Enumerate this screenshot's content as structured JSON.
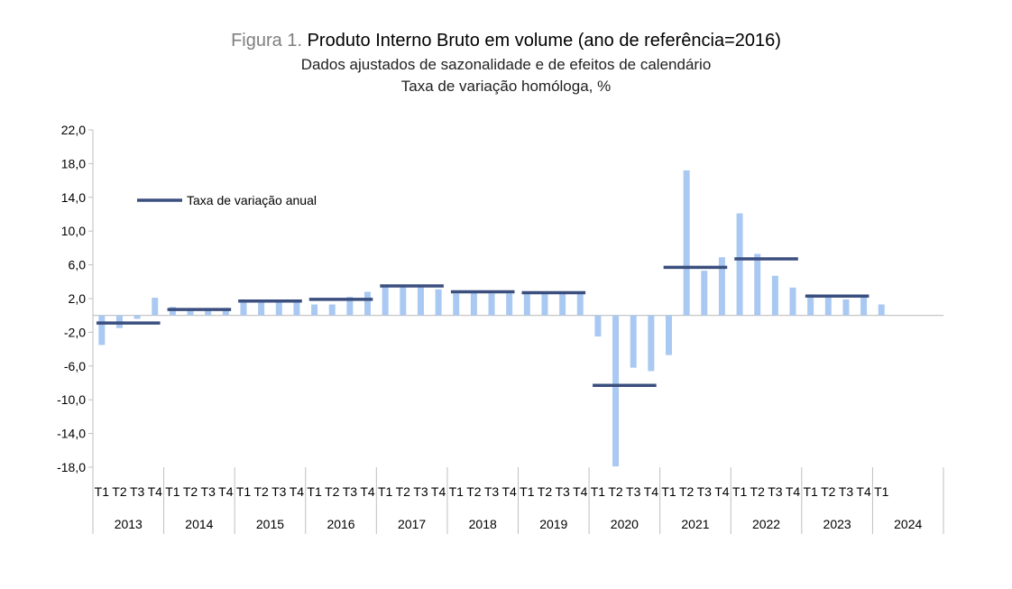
{
  "header": {
    "figure_label": "Figura 1.",
    "title": "Produto Interno Bruto em volume (ano de referência=2016)",
    "subtitle1": "Dados ajustados de sazonalidade e de efeitos de calendário",
    "subtitle2": "Taxa de variação homóloga, %"
  },
  "chart_data": {
    "type": "bar",
    "title": "Produto Interno Bruto em volume (ano de referência=2016)",
    "ylim": [
      -18,
      22
    ],
    "yticks": [
      22,
      18,
      14,
      10,
      6,
      2,
      -2,
      -6,
      -10,
      -14,
      -18
    ],
    "ytick_labels": [
      "22,0",
      "18,0",
      "14,0",
      "10,0",
      "6,0",
      "2,0",
      "-2,0",
      "-6,0",
      "-10,0",
      "-14,0",
      "-18,0"
    ],
    "colors": {
      "bars": "#a9c9f2",
      "annual": "#3b4f7e",
      "axis": "#bfbfbf"
    },
    "years": [
      {
        "label": "2013",
        "quarters": [
          "T1",
          "T2",
          "T3",
          "T4"
        ],
        "values": [
          -3.5,
          -1.5,
          -0.4,
          2.1
        ],
        "annual": -0.9
      },
      {
        "label": "2014",
        "quarters": [
          "T1",
          "T2",
          "T3",
          "T4"
        ],
        "values": [
          1.0,
          0.6,
          0.6,
          0.6
        ],
        "annual": 0.7
      },
      {
        "label": "2015",
        "quarters": [
          "T1",
          "T2",
          "T3",
          "T4"
        ],
        "values": [
          1.9,
          1.7,
          1.7,
          1.6
        ],
        "annual": 1.7
      },
      {
        "label": "2016",
        "quarters": [
          "T1",
          "T2",
          "T3",
          "T4"
        ],
        "values": [
          1.3,
          1.3,
          2.2,
          2.8
        ],
        "annual": 1.9
      },
      {
        "label": "2017",
        "quarters": [
          "T1",
          "T2",
          "T3",
          "T4"
        ],
        "values": [
          3.5,
          3.4,
          3.4,
          3.1
        ],
        "annual": 3.5
      },
      {
        "label": "2018",
        "quarters": [
          "T1",
          "T2",
          "T3",
          "T4"
        ],
        "values": [
          2.6,
          2.8,
          2.6,
          2.6
        ],
        "annual": 2.8
      },
      {
        "label": "2019",
        "quarters": [
          "T1",
          "T2",
          "T3",
          "T4"
        ],
        "values": [
          2.6,
          2.6,
          2.6,
          2.6
        ],
        "annual": 2.7
      },
      {
        "label": "2020",
        "quarters": [
          "T1",
          "T2",
          "T3",
          "T4"
        ],
        "values": [
          -2.5,
          -17.9,
          -6.2,
          -6.6
        ],
        "annual": -8.3
      },
      {
        "label": "2021",
        "quarters": [
          "T1",
          "T2",
          "T3",
          "T4"
        ],
        "values": [
          -4.7,
          17.2,
          5.3,
          6.9
        ],
        "annual": 5.7
      },
      {
        "label": "2022",
        "quarters": [
          "T1",
          "T2",
          "T3",
          "T4"
        ],
        "values": [
          12.1,
          7.3,
          4.7,
          3.3
        ],
        "annual": 6.7
      },
      {
        "label": "2023",
        "quarters": [
          "T1",
          "T2",
          "T3",
          "T4"
        ],
        "values": [
          2.5,
          2.3,
          1.9,
          2.2
        ],
        "annual": 2.3
      },
      {
        "label": "2024",
        "quarters": [
          "T1"
        ],
        "values": [
          1.3
        ],
        "annual": null
      }
    ],
    "legend": {
      "label": "Taxa de variação anual",
      "position": "top-left"
    }
  }
}
